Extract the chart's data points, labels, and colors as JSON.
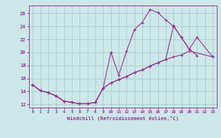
{
  "bg_color": "#cce8e8",
  "grid_color": "#aacccc",
  "line_color": "#993399",
  "xlabel": "Windchill (Refroidissement éolien,°C)",
  "xlim": [
    -0.5,
    23.5
  ],
  "ylim": [
    11.5,
    27.2
  ],
  "xticks": [
    0,
    1,
    2,
    3,
    4,
    5,
    6,
    7,
    8,
    9,
    10,
    11,
    12,
    13,
    14,
    15,
    16,
    17,
    18,
    19,
    20,
    21,
    22,
    23
  ],
  "yticks": [
    12,
    14,
    16,
    18,
    20,
    22,
    24,
    26
  ],
  "curve1_x": [
    0,
    1,
    2,
    3,
    4,
    5,
    6,
    7,
    8,
    9,
    10,
    11,
    12,
    13,
    14,
    15,
    16,
    17,
    18,
    19,
    20,
    21
  ],
  "curve1_y": [
    15.0,
    14.1,
    13.8,
    13.3,
    12.5,
    12.3,
    12.1,
    12.1,
    12.3,
    14.5,
    20.0,
    16.5,
    20.2,
    23.5,
    24.6,
    26.6,
    26.1,
    25.0,
    24.0,
    22.3,
    20.5,
    19.5
  ],
  "curve2_x": [
    0,
    1,
    2,
    3,
    4,
    5,
    6,
    7,
    8,
    9,
    10,
    11,
    12,
    13,
    14,
    15,
    16,
    17,
    18,
    19,
    20,
    21,
    23
  ],
  "curve2_y": [
    15.0,
    14.1,
    13.8,
    13.3,
    12.5,
    12.3,
    12.1,
    12.1,
    12.3,
    14.5,
    15.3,
    15.8,
    16.3,
    16.9,
    17.3,
    17.9,
    18.4,
    18.9,
    24.1,
    22.3,
    20.5,
    22.3,
    19.3
  ],
  "curve3_x": [
    0,
    1,
    2,
    3,
    4,
    5,
    6,
    7,
    8,
    9,
    10,
    11,
    12,
    13,
    14,
    15,
    16,
    17,
    18,
    19,
    20,
    23
  ],
  "curve3_y": [
    15.0,
    14.1,
    13.8,
    13.3,
    12.5,
    12.3,
    12.1,
    12.1,
    12.3,
    14.5,
    15.3,
    15.8,
    16.3,
    16.9,
    17.3,
    17.9,
    18.4,
    18.9,
    19.3,
    19.6,
    20.2,
    19.3
  ]
}
